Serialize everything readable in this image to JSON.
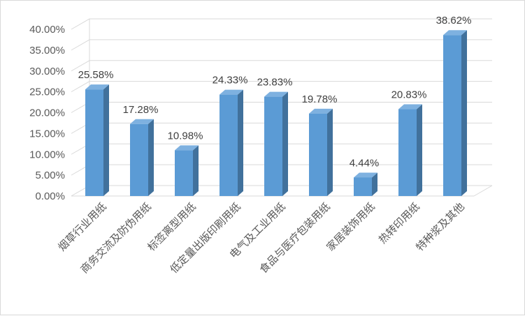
{
  "chart_data": {
    "type": "bar",
    "categories": [
      "烟草行业用纸",
      "商务交流及防伪用纸",
      "标签离型用纸",
      "低定量出版印刷用纸",
      "电气及工业用纸",
      "食品与医疗包装用纸",
      "家居装饰用纸",
      "热转印用纸",
      "特种浆及其他"
    ],
    "series": [
      {
        "values": [
          25.58,
          17.28,
          10.98,
          24.33,
          23.83,
          19.78,
          4.44,
          20.83,
          38.62
        ]
      }
    ],
    "data_labels": [
      "25.58%",
      "17.28%",
      "10.98%",
      "24.33%",
      "23.83%",
      "19.78%",
      "4.44%",
      "20.83%",
      "38.62%"
    ],
    "y_ticks": [
      "0.00%",
      "5.00%",
      "10.00%",
      "15.00%",
      "20.00%",
      "25.00%",
      "30.00%",
      "35.00%",
      "40.00%"
    ],
    "ylim": [
      0,
      40
    ],
    "grid": true,
    "legend": "none",
    "style": "3d-column",
    "colors": {
      "bar_front": "#5b9bd5",
      "bar_side": "#41719c",
      "bar_top": "#7eb1e0",
      "grid": "#d9d9d9"
    }
  }
}
